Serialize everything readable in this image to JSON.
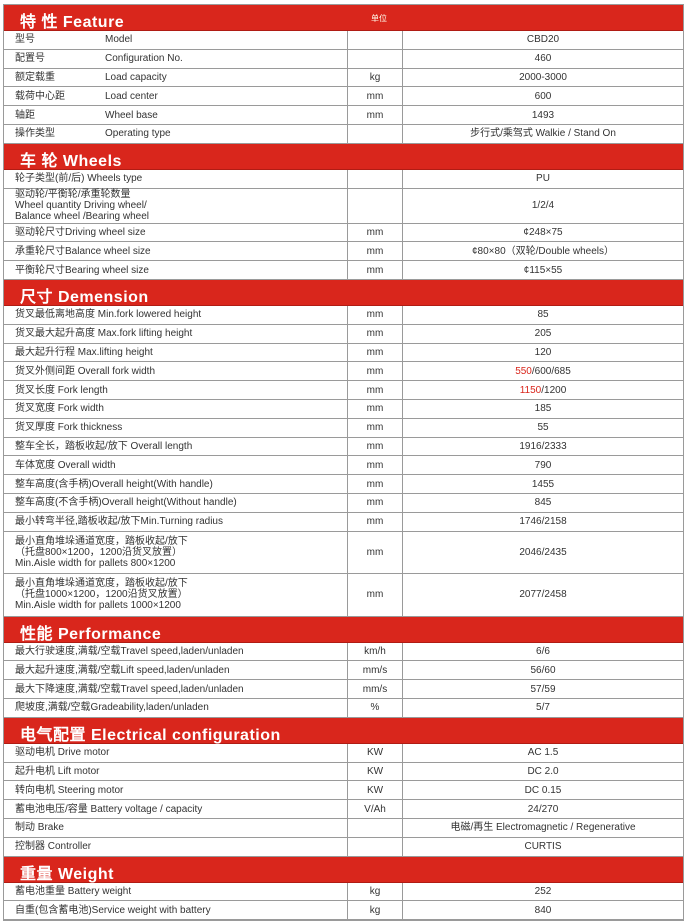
{
  "unit_header": "单位",
  "accent_color": "#d9261c",
  "sections": [
    {
      "title": "特 性 Feature",
      "rows": [
        {
          "zh": "型号",
          "en": "Model",
          "unit": "",
          "value": "CBD20"
        },
        {
          "zh": "配置号",
          "en": "Configuration   No.",
          "unit": "",
          "value": "460"
        },
        {
          "zh": "额定载重",
          "en": "Load capacity",
          "unit": "kg",
          "value": "2000-3000"
        },
        {
          "zh": "载荷中心距",
          "en": "Load center",
          "unit": "mm",
          "value": "600"
        },
        {
          "zh": "轴距",
          "en": "Wheel  base",
          "unit": "mm",
          "value": "1493"
        },
        {
          "zh": "操作类型",
          "en": "Operating  type",
          "unit": "",
          "value": "步行式/乘驾式 Walkie  /  Stand On"
        }
      ]
    },
    {
      "title": "车 轮 Wheels",
      "rows": [
        {
          "label": "轮子类型(前/后)  Wheels type",
          "unit": "",
          "value": "PU"
        },
        {
          "label": "驱动轮/平衡轮/承重轮数量\nWheel quantity Driving wheel/\nBalance wheel /Bearing wheel",
          "unit": "",
          "value": "1/2/4"
        },
        {
          "label": "驱动轮尺寸Driving wheel size",
          "unit": "mm",
          "value": "¢248×75"
        },
        {
          "label": "承重轮尺寸Balance wheel size",
          "unit": "mm",
          "value": "¢80×80（双轮/Double wheels）"
        },
        {
          "label": "平衡轮尺寸Bearing wheel size",
          "unit": "mm",
          "value": "¢115×55"
        }
      ]
    },
    {
      "title": "尺寸 Demension",
      "rows": [
        {
          "label": "货叉最低离地高度 Min.fork lowered  height",
          "unit": "mm",
          "value": "85"
        },
        {
          "label": "货叉最大起升高度 Max.fork lifting height",
          "unit": "mm",
          "value": "205"
        },
        {
          "label": "最大起升行程 Max.lifting height",
          "unit": "mm",
          "value": "120"
        },
        {
          "label": "货叉外侧间距 Overall fork width",
          "unit": "mm",
          "value_highlight": "550",
          "value": "/600/685"
        },
        {
          "label": "货叉长度 Fork length",
          "unit": "mm",
          "value_highlight": "1150",
          "value": "/1200"
        },
        {
          "label": "货叉宽度 Fork width",
          "unit": "mm",
          "value": "185"
        },
        {
          "label": "货叉厚度 Fork thickness",
          "unit": "mm",
          "value": "55"
        },
        {
          "label": "整车全长，踏板收起/放下 Overall length",
          "unit": "mm",
          "value": "1916/2333"
        },
        {
          "label": "车体宽度 Overall width",
          "unit": "mm",
          "value": "790"
        },
        {
          "label": "整车高度(含手柄)Overall height(With handle)",
          "unit": "mm",
          "value": "1455"
        },
        {
          "label": "整车高度(不含手柄)Overall height(Without handle)",
          "unit": "mm",
          "value": "845"
        },
        {
          "label": "最小转弯半径,踏板收起/放下Min.Turning radius",
          "unit": "mm",
          "value": "1746/2158"
        },
        {
          "label": "最小直角堆垛通道宽度，踏板收起/放下\n（托盘800×1200，1200沿货叉放置）\nMin.Aisle width for pallets 800×1200",
          "unit": "mm",
          "value": "2046/2435"
        },
        {
          "label": "最小直角堆垛通道宽度，踏板收起/放下\n（托盘1000×1200，1200沿货叉放置）\nMin.Aisle width for pallets 1000×1200",
          "unit": "mm",
          "value": "2077/2458"
        }
      ]
    },
    {
      "title": "性能 Performance",
      "rows": [
        {
          "label": "最大行驶速度,满载/空载Travel speed,laden/unladen",
          "unit": "km/h",
          "value": "6/6"
        },
        {
          "label": "最大起升速度,满载/空载Lift speed,laden/unladen",
          "unit": "mm/s",
          "value": "56/60"
        },
        {
          "label": "最大下降速度,满载/空载Travel speed,laden/unladen",
          "unit": "mm/s",
          "value": "57/59"
        },
        {
          "label": "爬坡度,满载/空载Gradeability,laden/unladen",
          "unit": "%",
          "value": "5/7"
        }
      ]
    },
    {
      "title": "电气配置 Electrical configuration",
      "rows": [
        {
          "label": "驱动电机 Drive motor",
          "unit": "KW",
          "value": "AC 1.5"
        },
        {
          "label": "起升电机 Lift motor",
          "unit": "KW",
          "value": "DC 2.0"
        },
        {
          "label": "转向电机 Steering motor",
          "unit": "KW",
          "value": "DC 0.15"
        },
        {
          "label": "蓄电池电压/容量  Battery voltage / capacity",
          "unit": "V/Ah",
          "value": "24/270"
        },
        {
          "label": "制动 Brake",
          "unit": "",
          "value": "电磁/再生 Electromagnetic / Regenerative"
        },
        {
          "label": "控制器 Controller",
          "unit": "",
          "value": "CURTIS"
        }
      ]
    },
    {
      "title": "重量 Weight",
      "rows": [
        {
          "label": "蓄电池重量 Battery weight",
          "unit": "kg",
          "value": "252"
        },
        {
          "label": "自重(包含蓄电池)Service weight with battery",
          "unit": "kg",
          "value": "840"
        }
      ]
    }
  ]
}
